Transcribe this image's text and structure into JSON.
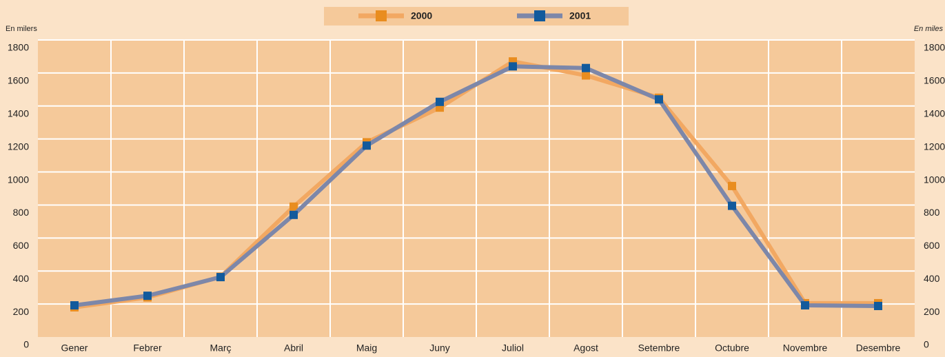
{
  "chart_data": {
    "type": "line",
    "y_label": "En milers",
    "y2_label": "En miles",
    "categories": [
      "Gener",
      "Febrer",
      "Març",
      "Abril",
      "Maig",
      "Juny",
      "Juliol",
      "Agost",
      "Setembre",
      "Octubre",
      "Novembre",
      "Desembre"
    ],
    "series": [
      {
        "name": "2000",
        "color": "#f2a862",
        "marker_color": "#e98d1f",
        "values": [
          180,
          240,
          365,
          790,
          1180,
          1390,
          1670,
          1585,
          1450,
          915,
          205,
          205
        ]
      },
      {
        "name": "2001",
        "color": "#7d87a9",
        "marker_color": "#125a9c",
        "values": [
          192,
          250,
          363,
          740,
          1160,
          1425,
          1640,
          1630,
          1440,
          795,
          192,
          188
        ]
      }
    ],
    "ylim": [
      0,
      1800
    ],
    "yticks": [
      0,
      200,
      400,
      600,
      800,
      1000,
      1200,
      1400,
      1600,
      1800
    ],
    "y2lim": [
      0,
      1800
    ],
    "y2ticks": [
      0,
      200,
      400,
      600,
      800,
      1000,
      1200,
      1400,
      1600,
      1800
    ],
    "grid": true
  }
}
